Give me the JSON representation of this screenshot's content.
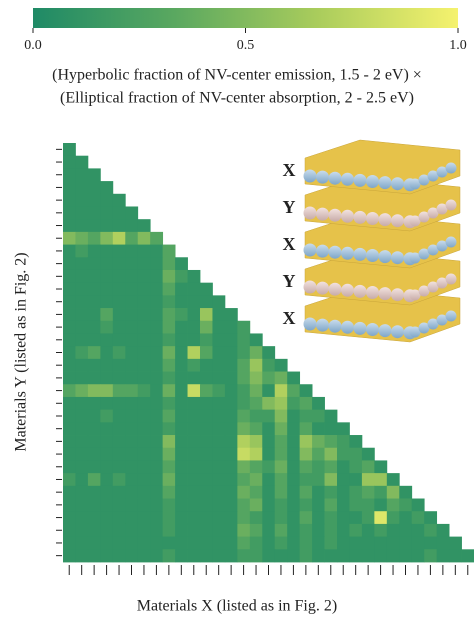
{
  "chart_data": {
    "type": "heatmap",
    "colorbar_label": [
      "(Hyperbolic fraction of NV-center emission, 1.5 - 2 eV) ×",
      "(Elliptical fraction of NV-center absorption, 2 - 2.5 eV)"
    ],
    "x_label": "Materials X (listed as in Fig. 2)",
    "y_label": "Materials Y (listed as in Fig. 2)",
    "inset_labels": [
      "X",
      "Y",
      "X",
      "Y",
      "X"
    ],
    "colormap": [
      "#1f8a66",
      "#5aa860",
      "#a9cc5c",
      "#f5f26e"
    ],
    "clim": [
      0,
      1
    ],
    "cticks": [
      {
        "value": 0,
        "label": "0.0"
      },
      {
        "value": 0.5,
        "label": "0.5"
      },
      {
        "value": 1,
        "label": "1.0"
      }
    ],
    "matrix": [
      [
        0.1
      ],
      [
        0.1,
        0.1
      ],
      [
        0.1,
        0.1,
        0.1
      ],
      [
        0.1,
        0.1,
        0.1,
        0.1
      ],
      [
        0.1,
        0.1,
        0.1,
        0.1,
        0.1
      ],
      [
        0.1,
        0.1,
        0.1,
        0.1,
        0.1,
        0.1
      ],
      [
        0.1,
        0.1,
        0.1,
        0.1,
        0.1,
        0.1,
        0.1
      ],
      [
        0.5,
        0.4,
        0.3,
        0.5,
        0.7,
        0.3,
        0.5,
        0.3
      ],
      [
        0.1,
        0.2,
        0.1,
        0.1,
        0.1,
        0.1,
        0.1,
        0.1,
        0.3
      ],
      [
        0.1,
        0.1,
        0.1,
        0.1,
        0.1,
        0.1,
        0.1,
        0.1,
        0.3,
        0.1
      ],
      [
        0.1,
        0.1,
        0.1,
        0.1,
        0.1,
        0.1,
        0.1,
        0.1,
        0.4,
        0.2,
        0.1
      ],
      [
        0.1,
        0.1,
        0.1,
        0.1,
        0.1,
        0.1,
        0.1,
        0.1,
        0.3,
        0.1,
        0.1,
        0.1
      ],
      [
        0.1,
        0.1,
        0.1,
        0.1,
        0.1,
        0.1,
        0.1,
        0.1,
        0.2,
        0.1,
        0.1,
        0.1,
        0.1
      ],
      [
        0.1,
        0.1,
        0.1,
        0.3,
        0.1,
        0.1,
        0.1,
        0.1,
        0.3,
        0.2,
        0.1,
        0.6,
        0.1,
        0.1
      ],
      [
        0.1,
        0.1,
        0.1,
        0.2,
        0.1,
        0.1,
        0.1,
        0.1,
        0.3,
        0.1,
        0.1,
        0.4,
        0.1,
        0.1,
        0.2
      ],
      [
        0.1,
        0.1,
        0.1,
        0.1,
        0.1,
        0.1,
        0.1,
        0.1,
        0.2,
        0.1,
        0.1,
        0.2,
        0.1,
        0.1,
        0.2,
        0.1
      ],
      [
        0.1,
        0.2,
        0.3,
        0.1,
        0.2,
        0.1,
        0.1,
        0.1,
        0.4,
        0.1,
        0.7,
        0.3,
        0.1,
        0.1,
        0.2,
        0.4,
        0.1
      ],
      [
        0.1,
        0.1,
        0.1,
        0.1,
        0.1,
        0.1,
        0.1,
        0.1,
        0.3,
        0.1,
        0.2,
        0.1,
        0.1,
        0.1,
        0.3,
        0.6,
        0.2,
        0.1
      ],
      [
        0.1,
        0.1,
        0.1,
        0.1,
        0.1,
        0.1,
        0.1,
        0.1,
        0.2,
        0.1,
        0.1,
        0.1,
        0.1,
        0.1,
        0.3,
        0.5,
        0.3,
        0.4,
        0.1
      ],
      [
        0.3,
        0.4,
        0.5,
        0.5,
        0.3,
        0.3,
        0.2,
        0.1,
        0.4,
        0.1,
        0.8,
        0.3,
        0.2,
        0.1,
        0.2,
        0.4,
        0.1,
        0.7,
        0.3,
        0.1
      ],
      [
        0.1,
        0.1,
        0.1,
        0.1,
        0.1,
        0.1,
        0.1,
        0.1,
        0.2,
        0.1,
        0.1,
        0.1,
        0.1,
        0.1,
        0.2,
        0.3,
        0.5,
        0.6,
        0.2,
        0.3,
        0.1
      ],
      [
        0.1,
        0.1,
        0.1,
        0.2,
        0.1,
        0.1,
        0.1,
        0.1,
        0.3,
        0.1,
        0.1,
        0.1,
        0.1,
        0.1,
        0.3,
        0.2,
        0.2,
        0.5,
        0.1,
        0.2,
        0.2,
        0.1
      ],
      [
        0.1,
        0.1,
        0.1,
        0.1,
        0.1,
        0.1,
        0.1,
        0.1,
        0.2,
        0.1,
        0.1,
        0.1,
        0.1,
        0.1,
        0.4,
        0.3,
        0.1,
        0.4,
        0.1,
        0.3,
        0.1,
        0.1,
        0.1
      ],
      [
        0.1,
        0.1,
        0.1,
        0.1,
        0.1,
        0.1,
        0.1,
        0.1,
        0.5,
        0.1,
        0.1,
        0.1,
        0.1,
        0.1,
        0.7,
        0.6,
        0.1,
        0.3,
        0.1,
        0.6,
        0.4,
        0.3,
        0.2,
        0.1
      ],
      [
        0.1,
        0.1,
        0.1,
        0.1,
        0.1,
        0.1,
        0.1,
        0.1,
        0.4,
        0.1,
        0.1,
        0.1,
        0.1,
        0.1,
        0.8,
        0.7,
        0.1,
        0.3,
        0.1,
        0.5,
        0.3,
        0.5,
        0.2,
        0.2,
        0.1
      ],
      [
        0.1,
        0.1,
        0.1,
        0.1,
        0.1,
        0.1,
        0.1,
        0.1,
        0.3,
        0.1,
        0.1,
        0.1,
        0.1,
        0.1,
        0.4,
        0.3,
        0.2,
        0.4,
        0.1,
        0.3,
        0.2,
        0.3,
        0.1,
        0.2,
        0.3,
        0.1
      ],
      [
        0.2,
        0.1,
        0.3,
        0.1,
        0.2,
        0.1,
        0.1,
        0.1,
        0.4,
        0.1,
        0.1,
        0.1,
        0.1,
        0.1,
        0.3,
        0.4,
        0.1,
        0.3,
        0.1,
        0.2,
        0.2,
        0.5,
        0.1,
        0.1,
        0.6,
        0.6,
        0.1
      ],
      [
        0.1,
        0.1,
        0.1,
        0.1,
        0.1,
        0.1,
        0.1,
        0.1,
        0.3,
        0.1,
        0.1,
        0.1,
        0.1,
        0.1,
        0.4,
        0.3,
        0.1,
        0.3,
        0.1,
        0.3,
        0.1,
        0.2,
        0.1,
        0.2,
        0.3,
        0.2,
        0.5,
        0.1
      ],
      [
        0.1,
        0.1,
        0.1,
        0.1,
        0.1,
        0.1,
        0.1,
        0.1,
        0.2,
        0.1,
        0.1,
        0.1,
        0.1,
        0.1,
        0.3,
        0.4,
        0.1,
        0.2,
        0.1,
        0.2,
        0.1,
        0.3,
        0.1,
        0.2,
        0.2,
        0.1,
        0.3,
        0.2,
        0.1
      ],
      [
        0.1,
        0.1,
        0.1,
        0.1,
        0.1,
        0.1,
        0.1,
        0.1,
        0.2,
        0.1,
        0.1,
        0.1,
        0.1,
        0.1,
        0.3,
        0.2,
        0.1,
        0.2,
        0.1,
        0.3,
        0.1,
        0.2,
        0.1,
        0.1,
        0.2,
        0.9,
        0.2,
        0.1,
        0.2,
        0.1
      ],
      [
        0.1,
        0.1,
        0.1,
        0.1,
        0.1,
        0.1,
        0.1,
        0.1,
        0.2,
        0.1,
        0.1,
        0.1,
        0.1,
        0.1,
        0.4,
        0.3,
        0.1,
        0.3,
        0.1,
        0.2,
        0.1,
        0.2,
        0.1,
        0.2,
        0.1,
        0.2,
        0.1,
        0.1,
        0.1,
        0.2,
        0.1
      ],
      [
        0.1,
        0.1,
        0.1,
        0.1,
        0.1,
        0.1,
        0.1,
        0.1,
        0.1,
        0.1,
        0.1,
        0.1,
        0.1,
        0.1,
        0.3,
        0.2,
        0.1,
        0.2,
        0.1,
        0.2,
        0.1,
        0.2,
        0.1,
        0.1,
        0.1,
        0.1,
        0.1,
        0.1,
        0.1,
        0.1,
        0.1,
        0.1
      ],
      [
        0.1,
        0.1,
        0.1,
        0.1,
        0.1,
        0.1,
        0.1,
        0.1,
        0.2,
        0.1,
        0.1,
        0.1,
        0.1,
        0.1,
        0.2,
        0.2,
        0.1,
        0.1,
        0.1,
        0.2,
        0.1,
        0.1,
        0.1,
        0.1,
        0.1,
        0.1,
        0.1,
        0.1,
        0.1,
        0.2,
        0.1,
        0.1,
        0.1
      ]
    ]
  }
}
